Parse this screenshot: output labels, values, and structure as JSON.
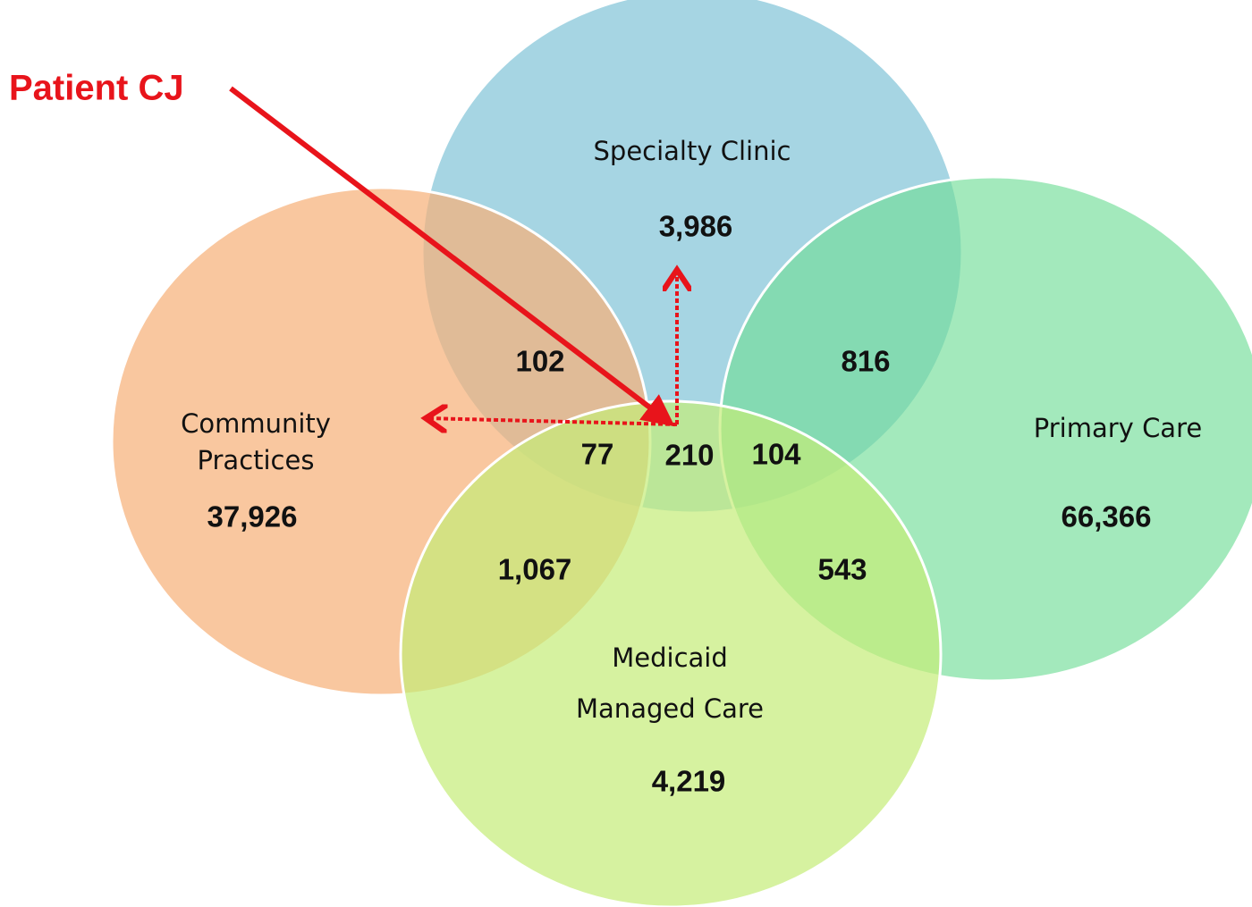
{
  "annotation": "Patient CJ",
  "sets": [
    {
      "label": "Specialty Clinic",
      "count": "3,986"
    },
    {
      "label_lines": [
        "Community",
        "Practices"
      ],
      "count": "37,926"
    },
    {
      "label": "Primary Care",
      "count": "66,366"
    },
    {
      "label_lines": [
        "Medicaid",
        "Managed Care"
      ],
      "count": "4,219"
    }
  ],
  "intersections": [
    {
      "sets": [
        "Specialty Clinic",
        "Community Practices"
      ],
      "count": "102"
    },
    {
      "sets": [
        "Specialty Clinic",
        "Primary Care"
      ],
      "count": "816"
    },
    {
      "sets": [
        "Specialty Clinic",
        "Community Practices",
        "Medicaid Managed Care"
      ],
      "count": "77"
    },
    {
      "sets": [
        "Specialty Clinic",
        "Medicaid Managed Care"
      ],
      "count": "210"
    },
    {
      "sets": [
        "Specialty Clinic",
        "Primary Care",
        "Medicaid Managed Care"
      ],
      "count": "104"
    },
    {
      "sets": [
        "Community Practices",
        "Medicaid Managed Care"
      ],
      "count": "1,067"
    },
    {
      "sets": [
        "Primary Care",
        "Medicaid Managed Care"
      ],
      "count": "543"
    }
  ]
}
